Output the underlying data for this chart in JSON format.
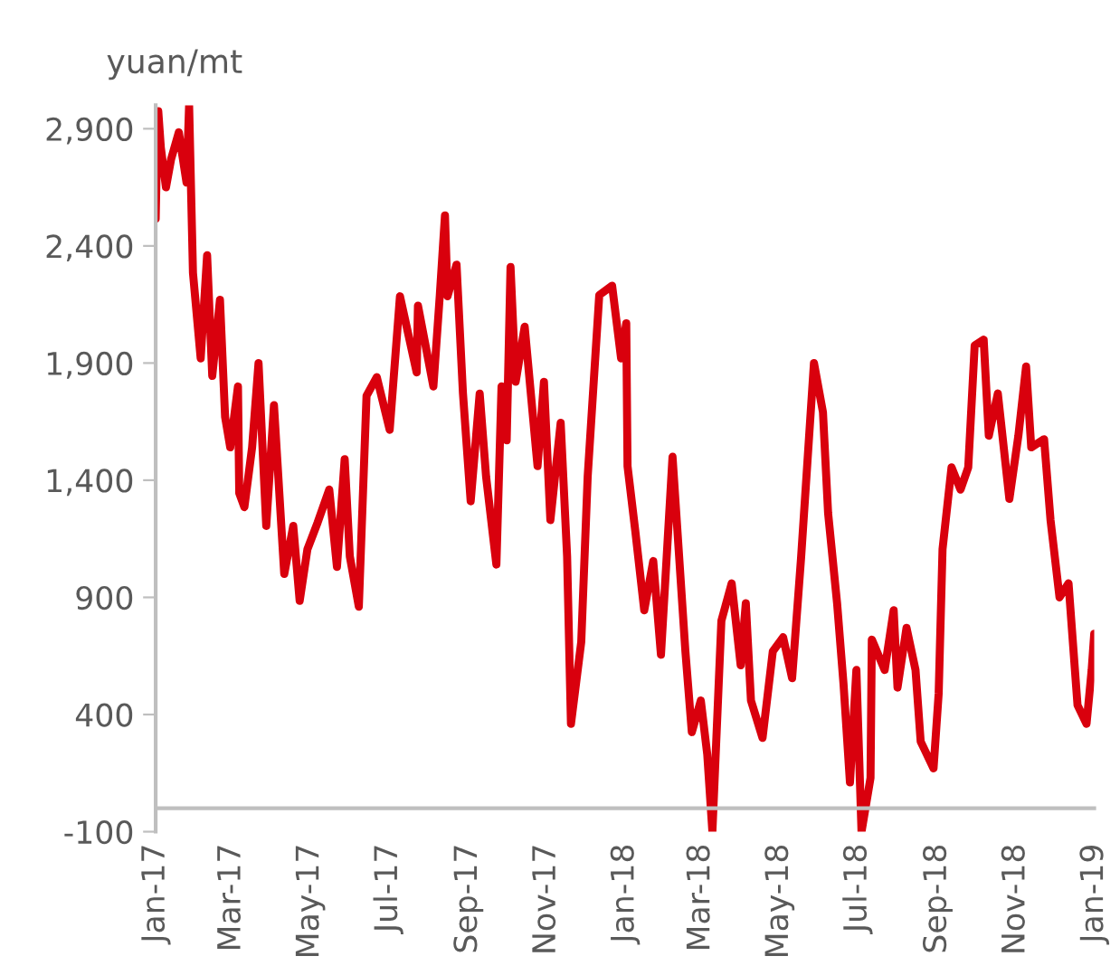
{
  "chart_data": {
    "type": "line",
    "ylabel": "yuan/mt",
    "x": [
      "2017-01-01",
      "2017-01-02",
      "2017-01-03",
      "2017-01-05",
      "2017-01-09",
      "2017-01-13",
      "2017-01-19",
      "2017-01-25",
      "2017-01-27",
      "2017-01-30",
      "2017-02-05",
      "2017-02-10",
      "2017-02-14",
      "2017-02-20",
      "2017-02-24",
      "2017-02-28",
      "2017-03-06",
      "2017-03-07",
      "2017-03-11",
      "2017-03-17",
      "2017-03-22",
      "2017-03-28",
      "2017-04-03",
      "2017-04-11",
      "2017-04-18",
      "2017-04-23",
      "2017-04-29",
      "2017-05-07",
      "2017-05-16",
      "2017-05-22",
      "2017-05-28",
      "2017-06-01",
      "2017-06-08",
      "2017-06-14",
      "2017-06-22",
      "2017-07-02",
      "2017-07-10",
      "2017-07-23",
      "2017-07-24",
      "2017-08-05",
      "2017-08-10",
      "2017-08-14",
      "2017-08-16",
      "2017-08-23",
      "2017-08-28",
      "2017-09-03",
      "2017-09-10",
      "2017-09-15",
      "2017-09-23",
      "2017-09-27",
      "2017-10-01",
      "2017-10-04",
      "2017-10-08",
      "2017-10-15",
      "2017-10-25",
      "2017-10-30",
      "2017-11-04",
      "2017-11-12",
      "2017-11-17",
      "2017-11-20",
      "2017-11-28",
      "2017-12-03",
      "2017-12-12",
      "2017-12-22",
      "2017-12-29",
      "2018-01-02",
      "2018-01-03",
      "2018-01-09",
      "2018-01-16",
      "2018-01-23",
      "2018-01-29",
      "2018-02-07",
      "2018-02-17",
      "2018-02-22",
      "2018-03-01",
      "2018-03-06",
      "2018-03-10",
      "2018-03-17",
      "2018-03-25",
      "2018-04-01",
      "2018-04-05",
      "2018-04-09",
      "2018-04-18",
      "2018-04-26",
      "2018-05-04",
      "2018-05-11",
      "2018-05-18",
      "2018-05-28",
      "2018-06-04",
      "2018-06-08",
      "2018-06-15",
      "2018-06-20",
      "2018-06-25",
      "2018-06-30",
      "2018-07-04",
      "2018-07-11",
      "2018-07-12",
      "2018-07-22",
      "2018-07-29",
      "2018-08-01",
      "2018-08-08",
      "2018-08-15",
      "2018-08-19",
      "2018-08-29",
      "2018-09-02",
      "2018-09-05",
      "2018-09-12",
      "2018-09-19",
      "2018-09-25",
      "2018-09-30",
      "2018-10-07",
      "2018-10-11",
      "2018-10-18",
      "2018-10-27",
      "2018-11-03",
      "2018-11-09",
      "2018-11-13",
      "2018-11-23",
      "2018-11-28",
      "2018-12-05",
      "2018-12-12",
      "2018-12-19",
      "2018-12-26",
      "2018-12-30",
      "2019-01-01"
    ],
    "series": [
      {
        "color": "#d9000d",
        "values": [
          2515,
          2800,
          2975,
          2820,
          2650,
          2770,
          2885,
          2670,
          3000,
          2285,
          1920,
          2360,
          1845,
          2170,
          1670,
          1540,
          1800,
          1345,
          1285,
          1540,
          1900,
          1205,
          1720,
          1000,
          1205,
          885,
          1105,
          1220,
          1360,
          1030,
          1490,
          1075,
          860,
          1760,
          1840,
          1615,
          2185,
          1860,
          2145,
          1800,
          2190,
          2530,
          2185,
          2320,
          1770,
          1310,
          1770,
          1415,
          1040,
          1800,
          1570,
          2310,
          1820,
          2055,
          1460,
          1820,
          1230,
          1645,
          1075,
          360,
          710,
          1415,
          2190,
          2230,
          1920,
          2070,
          1460,
          1185,
          845,
          1055,
          655,
          1500,
          670,
          325,
          460,
          230,
          -100,
          800,
          960,
          610,
          875,
          460,
          300,
          670,
          730,
          555,
          1070,
          1900,
          1690,
          1260,
          875,
          530,
          110,
          590,
          -100,
          130,
          720,
          590,
          845,
          515,
          770,
          590,
          285,
          170,
          490,
          1105,
          1455,
          1360,
          1455,
          1975,
          2000,
          1590,
          1770,
          1320,
          1590,
          1885,
          1540,
          1575,
          1230,
          900,
          960,
          440,
          360,
          590,
          745
        ]
      }
    ],
    "xlim": [
      "2017-01-01",
      "2019-01-01"
    ],
    "xticks": [
      {
        "value": "2017-01-01",
        "label": "Jan-17"
      },
      {
        "value": "2017-03-01",
        "label": "Mar-17"
      },
      {
        "value": "2017-05-01",
        "label": "May-17"
      },
      {
        "value": "2017-07-01",
        "label": "Jul-17"
      },
      {
        "value": "2017-09-01",
        "label": "Sep-17"
      },
      {
        "value": "2017-11-01",
        "label": "Nov-17"
      },
      {
        "value": "2018-01-01",
        "label": "Jan-18"
      },
      {
        "value": "2018-03-01",
        "label": "Mar-18"
      },
      {
        "value": "2018-05-01",
        "label": "May-18"
      },
      {
        "value": "2018-07-01",
        "label": "Jul-18"
      },
      {
        "value": "2018-09-01",
        "label": "Sep-18"
      },
      {
        "value": "2018-11-01",
        "label": "Nov-18"
      },
      {
        "value": "2019-01-01",
        "label": "Jan-19"
      }
    ],
    "ylim": [
      -100,
      3000
    ],
    "yticks": [
      {
        "value": -100,
        "label": "-100"
      },
      {
        "value": 400,
        "label": "400"
      },
      {
        "value": 900,
        "label": "900"
      },
      {
        "value": 1400,
        "label": "1,400"
      },
      {
        "value": 1900,
        "label": "1,900"
      },
      {
        "value": 2400,
        "label": "2,400"
      },
      {
        "value": 2900,
        "label": "2,900"
      }
    ],
    "grid": false,
    "legend": false,
    "marker": "none",
    "line_style": "solid"
  }
}
